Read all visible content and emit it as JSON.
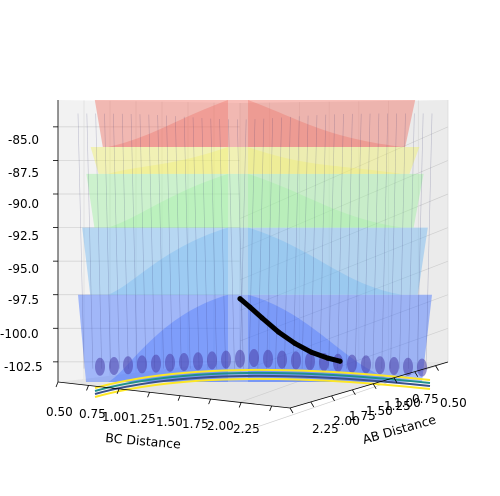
{
  "chart_data": {
    "type": "surface",
    "projection": "3d",
    "title": "",
    "xlabel": "BC Distance",
    "ylabel": "AB Distance",
    "zlabel": "",
    "x_ticks": [
      "0.50",
      "0.75",
      "1.00",
      "1.25",
      "1.50",
      "1.75",
      "2.00",
      "2.25"
    ],
    "y_ticks": [
      "0.50",
      "0.75",
      "1.00",
      "1.25",
      "1.50",
      "1.75",
      "2.00",
      "2.25"
    ],
    "z_ticks": [
      "-85.0",
      "-87.5",
      "-90.0",
      "-92.5",
      "-95.0",
      "-97.5",
      "-100.0",
      "-102.5"
    ],
    "xlim": [
      0.5,
      2.4
    ],
    "ylim": [
      0.5,
      2.4
    ],
    "zlim": [
      -104,
      -83
    ],
    "colormap": "jet",
    "surface_alpha": 0.45,
    "grid": true,
    "legend": "none",
    "bands": [
      {
        "z_min": -104,
        "z_max": -97.5,
        "color": "#3f6fff"
      },
      {
        "z_min": -97.5,
        "z_max": -92.5,
        "color": "#6fb6f2"
      },
      {
        "z_min": -92.5,
        "z_max": -88.5,
        "color": "#9ef0a0"
      },
      {
        "z_min": -88.5,
        "z_max": -86.5,
        "color": "#f0ef6a"
      },
      {
        "z_min": -86.5,
        "z_max": -83,
        "color": "#ef7064"
      }
    ],
    "trajectory": {
      "color": "#000000",
      "points": [
        {
          "x": 0.98,
          "y": 1.6,
          "z": -97.8
        },
        {
          "x": 1.1,
          "y": 1.55,
          "z": -98.4
        },
        {
          "x": 1.25,
          "y": 1.48,
          "z": -99.2
        },
        {
          "x": 1.45,
          "y": 1.35,
          "z": -100.2
        },
        {
          "x": 1.65,
          "y": 1.18,
          "z": -101.0
        },
        {
          "x": 1.85,
          "y": 1.0,
          "z": -101.6
        },
        {
          "x": 2.05,
          "y": 0.85,
          "z": -102.0
        },
        {
          "x": 2.2,
          "y": 0.76,
          "z": -102.2
        }
      ]
    },
    "floor_contour_colors": [
      "#fde725",
      "#21918c",
      "#3b528b",
      "#fde725"
    ]
  }
}
